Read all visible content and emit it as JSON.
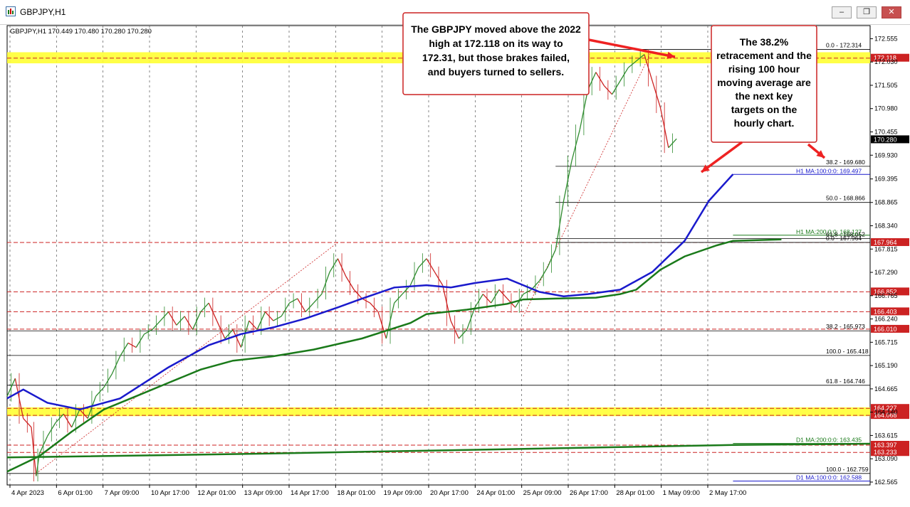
{
  "window": {
    "title": "GBPJPY,H1",
    "buttons": [
      "–",
      "❐",
      "✕"
    ]
  },
  "chart_data": {
    "type": "line",
    "symbol": "GBPJPY",
    "timeframe": "H1",
    "ohlc_header": "GBPJPY,H1   170.449 170.480 170.280 170.280",
    "last_price": "170.280",
    "ylim": [
      162.5,
      172.85
    ],
    "x_ticks": [
      "4 Apr 2023",
      "6 Apr 01:00",
      "7 Apr 09:00",
      "10 Apr 17:00",
      "12 Apr 01:00",
      "13 Apr 09:00",
      "14 Apr 17:00",
      "18 Apr 01:00",
      "19 Apr 09:00",
      "20 Apr 17:00",
      "24 Apr 01:00",
      "25 Apr 09:00",
      "26 Apr 17:00",
      "28 Apr 01:00",
      "1 May 09:00",
      "2 May 17:00"
    ],
    "y_ticks": [
      "172.555",
      "172.030",
      "171.505",
      "170.980",
      "170.455",
      "169.930",
      "169.395",
      "168.865",
      "168.340",
      "167.815",
      "167.290",
      "166.765",
      "166.240",
      "165.715",
      "165.190",
      "164.665",
      "164.140",
      "163.615",
      "163.090",
      "162.565"
    ],
    "series": [
      {
        "name": "H1 MA:100:0:0",
        "color": "#1a1acc",
        "values": [
          [
            0,
            164.45
          ],
          [
            2,
            164.65
          ],
          [
            5,
            164.35
          ],
          [
            9,
            164.2
          ],
          [
            14,
            164.45
          ],
          [
            20,
            165.15
          ],
          [
            25,
            165.65
          ],
          [
            29,
            165.9
          ],
          [
            33,
            166.05
          ],
          [
            37,
            166.25
          ],
          [
            41,
            166.5
          ],
          [
            44,
            166.7
          ],
          [
            48,
            166.95
          ],
          [
            52,
            167.0
          ],
          [
            55,
            166.95
          ],
          [
            58,
            167.05
          ],
          [
            62,
            167.15
          ],
          [
            64,
            167.0
          ],
          [
            66,
            166.85
          ],
          [
            69,
            166.75
          ],
          [
            72,
            166.8
          ],
          [
            76,
            166.9
          ],
          [
            80,
            167.3
          ],
          [
            84,
            168.0
          ],
          [
            87,
            168.9
          ],
          [
            90,
            169.5
          ]
        ]
      },
      {
        "name": "H1 MA:200:0:0",
        "color": "#1a7a1a",
        "values": [
          [
            0,
            162.8
          ],
          [
            4,
            163.15
          ],
          [
            8,
            163.7
          ],
          [
            12,
            164.2
          ],
          [
            16,
            164.5
          ],
          [
            20,
            164.8
          ],
          [
            24,
            165.1
          ],
          [
            28,
            165.3
          ],
          [
            33,
            165.4
          ],
          [
            38,
            165.55
          ],
          [
            44,
            165.8
          ],
          [
            50,
            166.15
          ],
          [
            52,
            166.35
          ],
          [
            57,
            166.45
          ],
          [
            62,
            166.58
          ],
          [
            64,
            166.68
          ],
          [
            68,
            166.7
          ],
          [
            73,
            166.72
          ],
          [
            76,
            166.8
          ],
          [
            78,
            166.9
          ],
          [
            81,
            167.35
          ],
          [
            84,
            167.65
          ],
          [
            88,
            167.9
          ],
          [
            90,
            168.0
          ],
          [
            96,
            168.03
          ]
        ]
      },
      {
        "name": "D1 MA:200:0:0",
        "color": "#1a7a1a",
        "values": [
          [
            0,
            163.12
          ],
          [
            30,
            163.2
          ],
          [
            60,
            163.3
          ],
          [
            90,
            163.4
          ],
          [
            107,
            163.43
          ]
        ]
      }
    ],
    "horizontal_lines": [
      {
        "label": "0.0 - 172.314",
        "value": 172.314,
        "style": "fib"
      },
      {
        "label": "38.2 - 169.680",
        "value": 169.68,
        "style": "fib"
      },
      {
        "label": "50.0 - 168.866",
        "value": 168.866,
        "style": "fib"
      },
      {
        "label": "61.8 - 168.052",
        "value": 168.052,
        "style": "fib"
      },
      {
        "label": "0.0 - 167.964",
        "value": 167.964,
        "style": "fib"
      },
      {
        "label": "38.2 - 165.973",
        "value": 165.973,
        "style": "fib"
      },
      {
        "label": "100.0 - 165.418",
        "value": 165.418,
        "style": "fib"
      },
      {
        "label": "61.8 - 164.746",
        "value": 164.746,
        "style": "fib"
      },
      {
        "label": "100.0 - 162.759",
        "value": 162.759,
        "style": "fib"
      }
    ],
    "red_levels": [
      {
        "label": "172.118",
        "value": 172.118
      },
      {
        "label": "167.964",
        "value": 167.964
      },
      {
        "label": "166.852",
        "value": 166.852
      },
      {
        "label": "166.403",
        "value": 166.403
      },
      {
        "label": "166.010",
        "value": 166.01
      },
      {
        "label": "164.227",
        "value": 164.227
      },
      {
        "label": "164.068",
        "value": 164.068
      },
      {
        "label": "163.397",
        "value": 163.397
      },
      {
        "label": "163.233",
        "value": 163.233
      }
    ],
    "line_labels": [
      {
        "label": "H1 MA:100:0:0: 169.497",
        "value": 169.497,
        "color": "#1a1acc"
      },
      {
        "label": "H1 MA:200:0:0: 168.127",
        "value": 168.127,
        "color": "#1a7a1a"
      },
      {
        "label": "D1 MA:200:0:0: 163.435",
        "value": 163.435,
        "color": "#1a7a1a"
      },
      {
        "label": "D1 MA:100:0:0: 162.588",
        "value": 162.588,
        "color": "#1a1acc"
      }
    ],
    "yellow_zones": [
      [
        172.0,
        172.25
      ],
      [
        164.05,
        164.25
      ]
    ],
    "annotations": [
      "The GBPJPY moved above the 2022 high at 172.118 on its way to 172.31, but those brakes failed, and buyers turned to sellers.",
      "The 38.2% retracement and the rising 100 hour moving average are the next key targets on the hourly chart."
    ],
    "price_path": [
      [
        0,
        164.5
      ],
      [
        1,
        164.9
      ],
      [
        2,
        164.0
      ],
      [
        3,
        163.8
      ],
      [
        3.6,
        162.7
      ],
      [
        4,
        163.2
      ],
      [
        5,
        163.6
      ],
      [
        6,
        163.9
      ],
      [
        7,
        164.1
      ],
      [
        8,
        163.8
      ],
      [
        9,
        164.2
      ],
      [
        10,
        164.0
      ],
      [
        11,
        164.5
      ],
      [
        12,
        164.7
      ],
      [
        13,
        165.0
      ],
      [
        14,
        165.4
      ],
      [
        15,
        165.7
      ],
      [
        16,
        165.6
      ],
      [
        17,
        165.9
      ],
      [
        18,
        166.0
      ],
      [
        19,
        166.2
      ],
      [
        20,
        166.4
      ],
      [
        21,
        166.1
      ],
      [
        22,
        166.3
      ],
      [
        23,
        166.0
      ],
      [
        24,
        166.4
      ],
      [
        25,
        166.6
      ],
      [
        26,
        166.2
      ],
      [
        27,
        165.8
      ],
      [
        28,
        166.0
      ],
      [
        29,
        165.6
      ],
      [
        30,
        166.2
      ],
      [
        31,
        166.0
      ],
      [
        32,
        166.4
      ],
      [
        33,
        166.2
      ],
      [
        34,
        166.3
      ],
      [
        35,
        166.6
      ],
      [
        36,
        166.7
      ],
      [
        37,
        166.4
      ],
      [
        38,
        166.6
      ],
      [
        39,
        166.8
      ],
      [
        40,
        167.3
      ],
      [
        41,
        167.6
      ],
      [
        42,
        167.2
      ],
      [
        43,
        166.9
      ],
      [
        44,
        166.7
      ],
      [
        45,
        166.6
      ],
      [
        46,
        166.4
      ],
      [
        47,
        165.8
      ],
      [
        48,
        166.6
      ],
      [
        49,
        166.8
      ],
      [
        50,
        167.0
      ],
      [
        51,
        167.4
      ],
      [
        52,
        167.6
      ],
      [
        53,
        167.3
      ],
      [
        54,
        167.0
      ],
      [
        55,
        166.2
      ],
      [
        56,
        165.8
      ],
      [
        57,
        166.0
      ],
      [
        58,
        166.5
      ],
      [
        59,
        166.8
      ],
      [
        60,
        166.6
      ],
      [
        61,
        166.9
      ],
      [
        62,
        166.7
      ],
      [
        63,
        166.5
      ],
      [
        64,
        166.8
      ],
      [
        65,
        166.9
      ],
      [
        66,
        167.1
      ],
      [
        67,
        167.4
      ],
      [
        68,
        167.8
      ],
      [
        69,
        168.9
      ],
      [
        70,
        169.8
      ],
      [
        71,
        170.5
      ],
      [
        72,
        171.4
      ],
      [
        73,
        171.8
      ],
      [
        74,
        171.5
      ],
      [
        75,
        171.3
      ],
      [
        76,
        171.6
      ],
      [
        77,
        171.9
      ],
      [
        78,
        172.05
      ],
      [
        79,
        172.2
      ],
      [
        80,
        171.6
      ],
      [
        81,
        171.0
      ],
      [
        82,
        170.1
      ],
      [
        83,
        170.3
      ]
    ]
  }
}
